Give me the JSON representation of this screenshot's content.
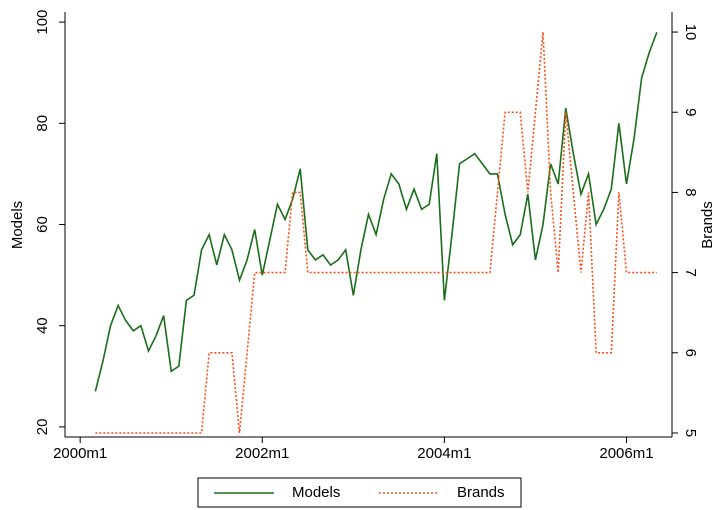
{
  "chart_data": {
    "type": "line",
    "x": [
      "2000m3",
      "2000m4",
      "2000m5",
      "2000m6",
      "2000m7",
      "2000m8",
      "2000m9",
      "2000m10",
      "2000m11",
      "2000m12",
      "2001m1",
      "2001m2",
      "2001m3",
      "2001m4",
      "2001m5",
      "2001m6",
      "2001m7",
      "2001m8",
      "2001m9",
      "2001m10",
      "2001m11",
      "2001m12",
      "2002m1",
      "2002m2",
      "2002m3",
      "2002m4",
      "2002m5",
      "2002m6",
      "2002m7",
      "2002m8",
      "2002m9",
      "2002m10",
      "2002m11",
      "2002m12",
      "2003m1",
      "2003m2",
      "2003m3",
      "2003m4",
      "2003m5",
      "2003m6",
      "2003m7",
      "2003m8",
      "2003m9",
      "2003m10",
      "2003m11",
      "2003m12",
      "2004m1",
      "2004m2",
      "2004m3",
      "2004m4",
      "2004m5",
      "2004m6",
      "2004m7",
      "2004m8",
      "2004m9",
      "2004m10",
      "2004m11",
      "2004m12",
      "2005m1",
      "2005m2",
      "2005m3",
      "2005m4",
      "2005m5",
      "2005m6",
      "2005m7",
      "2005m8",
      "2005m9",
      "2005m10",
      "2005m11",
      "2005m12",
      "2006m1",
      "2006m2",
      "2006m3",
      "2006m4",
      "2006m5"
    ],
    "series": [
      {
        "name": "Models",
        "color": "#1a6e1a",
        "axis": "y",
        "values": [
          27,
          33,
          40,
          44,
          41,
          39,
          40,
          35,
          38,
          42,
          31,
          32,
          45,
          46,
          55,
          58,
          52,
          58,
          55,
          49,
          53,
          59,
          50,
          57,
          64,
          61,
          65,
          71,
          55,
          53,
          54,
          52,
          53,
          55,
          46,
          55,
          62,
          58,
          65,
          70,
          68,
          63,
          67,
          63,
          64,
          74,
          45,
          58,
          72,
          73,
          74,
          72,
          70,
          70,
          62,
          56,
          58,
          66,
          53,
          60,
          72,
          68,
          83,
          74,
          66,
          70,
          60,
          63,
          67,
          80,
          68,
          77,
          89,
          94,
          98
        ]
      },
      {
        "name": "Brands",
        "color": "#ff4d1a",
        "axis": "y2",
        "values": [
          5,
          5,
          5,
          5,
          5,
          5,
          5,
          5,
          5,
          5,
          5,
          5,
          5,
          5,
          5,
          6,
          6,
          6,
          6,
          5,
          6,
          7,
          7,
          7,
          7,
          7,
          8,
          8,
          7,
          7,
          7,
          7,
          7,
          7,
          7,
          7,
          7,
          7,
          7,
          7,
          7,
          7,
          7,
          7,
          7,
          7,
          7,
          7,
          7,
          7,
          7,
          7,
          7,
          8,
          9,
          9,
          9,
          8,
          9,
          10,
          8,
          7,
          9,
          8,
          7,
          8,
          6,
          6,
          6,
          8,
          7,
          7,
          7,
          7,
          7
        ]
      }
    ],
    "xlim": [
      "1999m11",
      "2006m7"
    ],
    "xticks": [
      "2000m1",
      "2002m1",
      "2004m1",
      "2006m1"
    ],
    "ylim": [
      18,
      102
    ],
    "yticks": [
      20,
      40,
      60,
      80,
      100
    ],
    "ylabel": "Models",
    "y2lim": [
      4.95,
      10.25
    ],
    "y2ticks": [
      5,
      6,
      7,
      8,
      9,
      10
    ],
    "y2label": "Brands",
    "legend": "bottom"
  }
}
